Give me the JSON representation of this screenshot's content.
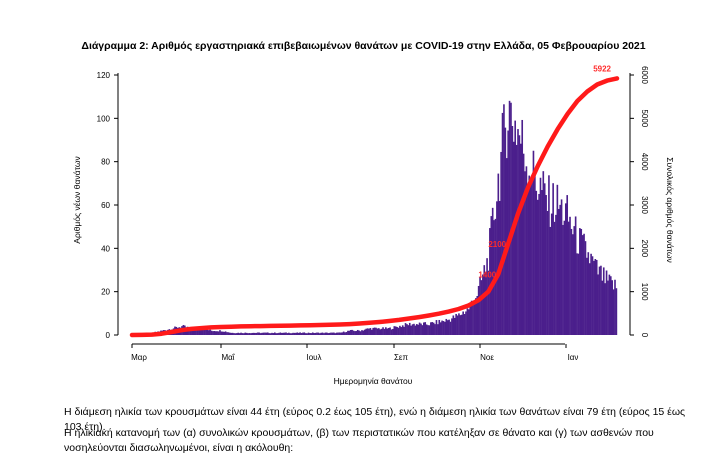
{
  "chart_data": {
    "type": "bar",
    "title": "Διάγραμμα 2: Αριθμός εργαστηριακά επιβεβαιωμένων θανάτων με COVID-19 στην Ελλάδα, 05 Φεβρουαρίου 2021",
    "xlabel": "Ημερομηνία θανάτου",
    "ylabel": "Αριθμός νέων θανάτων",
    "y2label": "Συνολικός αριθμός θανάτων",
    "x_ticks": [
      "Μαρ",
      "Μαΐ",
      "Ιουλ",
      "Σεπ",
      "Νοε",
      "Ιαν"
    ],
    "ylim": [
      0,
      120
    ],
    "y_ticks": [
      0,
      20,
      40,
      60,
      80,
      100,
      120
    ],
    "y2lim": [
      0,
      6000
    ],
    "y2_ticks": [
      0,
      1000,
      2000,
      3000,
      4000,
      5000,
      6000
    ],
    "grid": false,
    "bar_color": "#4b1f8c",
    "line_color": "#ff1a1a",
    "days_total": 345,
    "daily_deaths_weekly": [
      0,
      0,
      1,
      2,
      3,
      4,
      3,
      3,
      2,
      2,
      1,
      1,
      1,
      1,
      1,
      1,
      1,
      1,
      1,
      1,
      1,
      1,
      2,
      2,
      3,
      3,
      3,
      4,
      5,
      5,
      5,
      6,
      7,
      9,
      12,
      20,
      35,
      70,
      105,
      95,
      80,
      70,
      62,
      60,
      55,
      45,
      38,
      30,
      25,
      22
    ],
    "cumulative_deaths_weekly": [
      0,
      2,
      10,
      30,
      70,
      110,
      140,
      160,
      175,
      185,
      192,
      198,
      202,
      206,
      210,
      214,
      218,
      222,
      226,
      230,
      235,
      242,
      252,
      265,
      282,
      300,
      322,
      348,
      380,
      412,
      450,
      492,
      540,
      600,
      680,
      800,
      1000,
      1400,
      2100,
      2800,
      3400,
      3900,
      4350,
      4750,
      5100,
      5400,
      5620,
      5780,
      5870,
      5922
    ],
    "point_labels": [
      {
        "week": 37,
        "value": 1400,
        "label": "1400"
      },
      {
        "week": 38,
        "value": 2100,
        "label": "2100"
      },
      {
        "week": 49,
        "value": 5922,
        "label": "5922"
      }
    ]
  },
  "text": {
    "paragraph1": "Η διάμεση ηλικία των κρουσμάτων είναι 44 έτη (εύρος 0.2 έως 105 έτη), ενώ η διάμεση ηλικία των θανάτων είναι 79 έτη (εύρος 15 έως 103 έτη).",
    "paragraph2": "Η ηλικιακή κατανομή των (α) συνολικών κρουσμάτων, (β) των περιστατικών που κατέληξαν σε θάνατο και (γ) των ασθενών που νοσηλεύονται διασωληνωμένοι, είναι η ακόλουθη:"
  }
}
